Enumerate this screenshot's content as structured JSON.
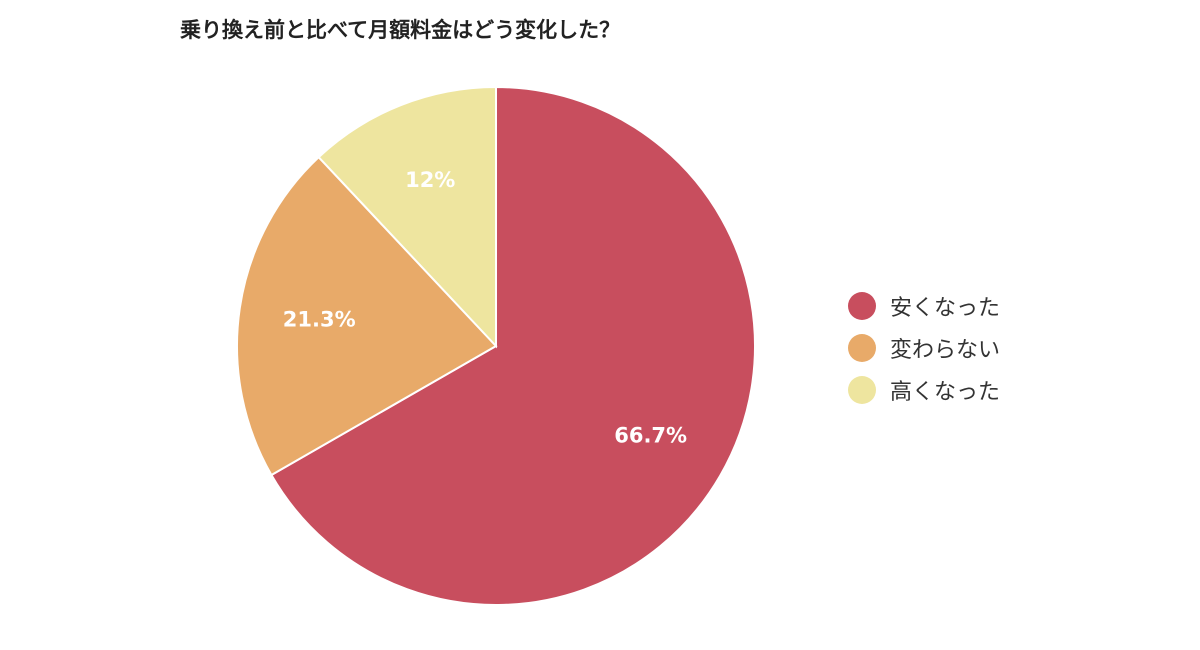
{
  "chart_data": {
    "type": "pie",
    "title": "乗り換え前と比べて月額料金はどう変化した？",
    "categories": [
      "安くなった",
      "変わらない",
      "高くなった"
    ],
    "values": [
      66.7,
      21.3,
      12
    ],
    "value_labels": [
      "66.7%",
      "21.3%",
      "12%"
    ],
    "colors": [
      "#C84E5E",
      "#E8AA69",
      "#EEE59F"
    ],
    "start_angle": "12 o'clock",
    "direction": "clockwise",
    "legend_position": "right"
  }
}
